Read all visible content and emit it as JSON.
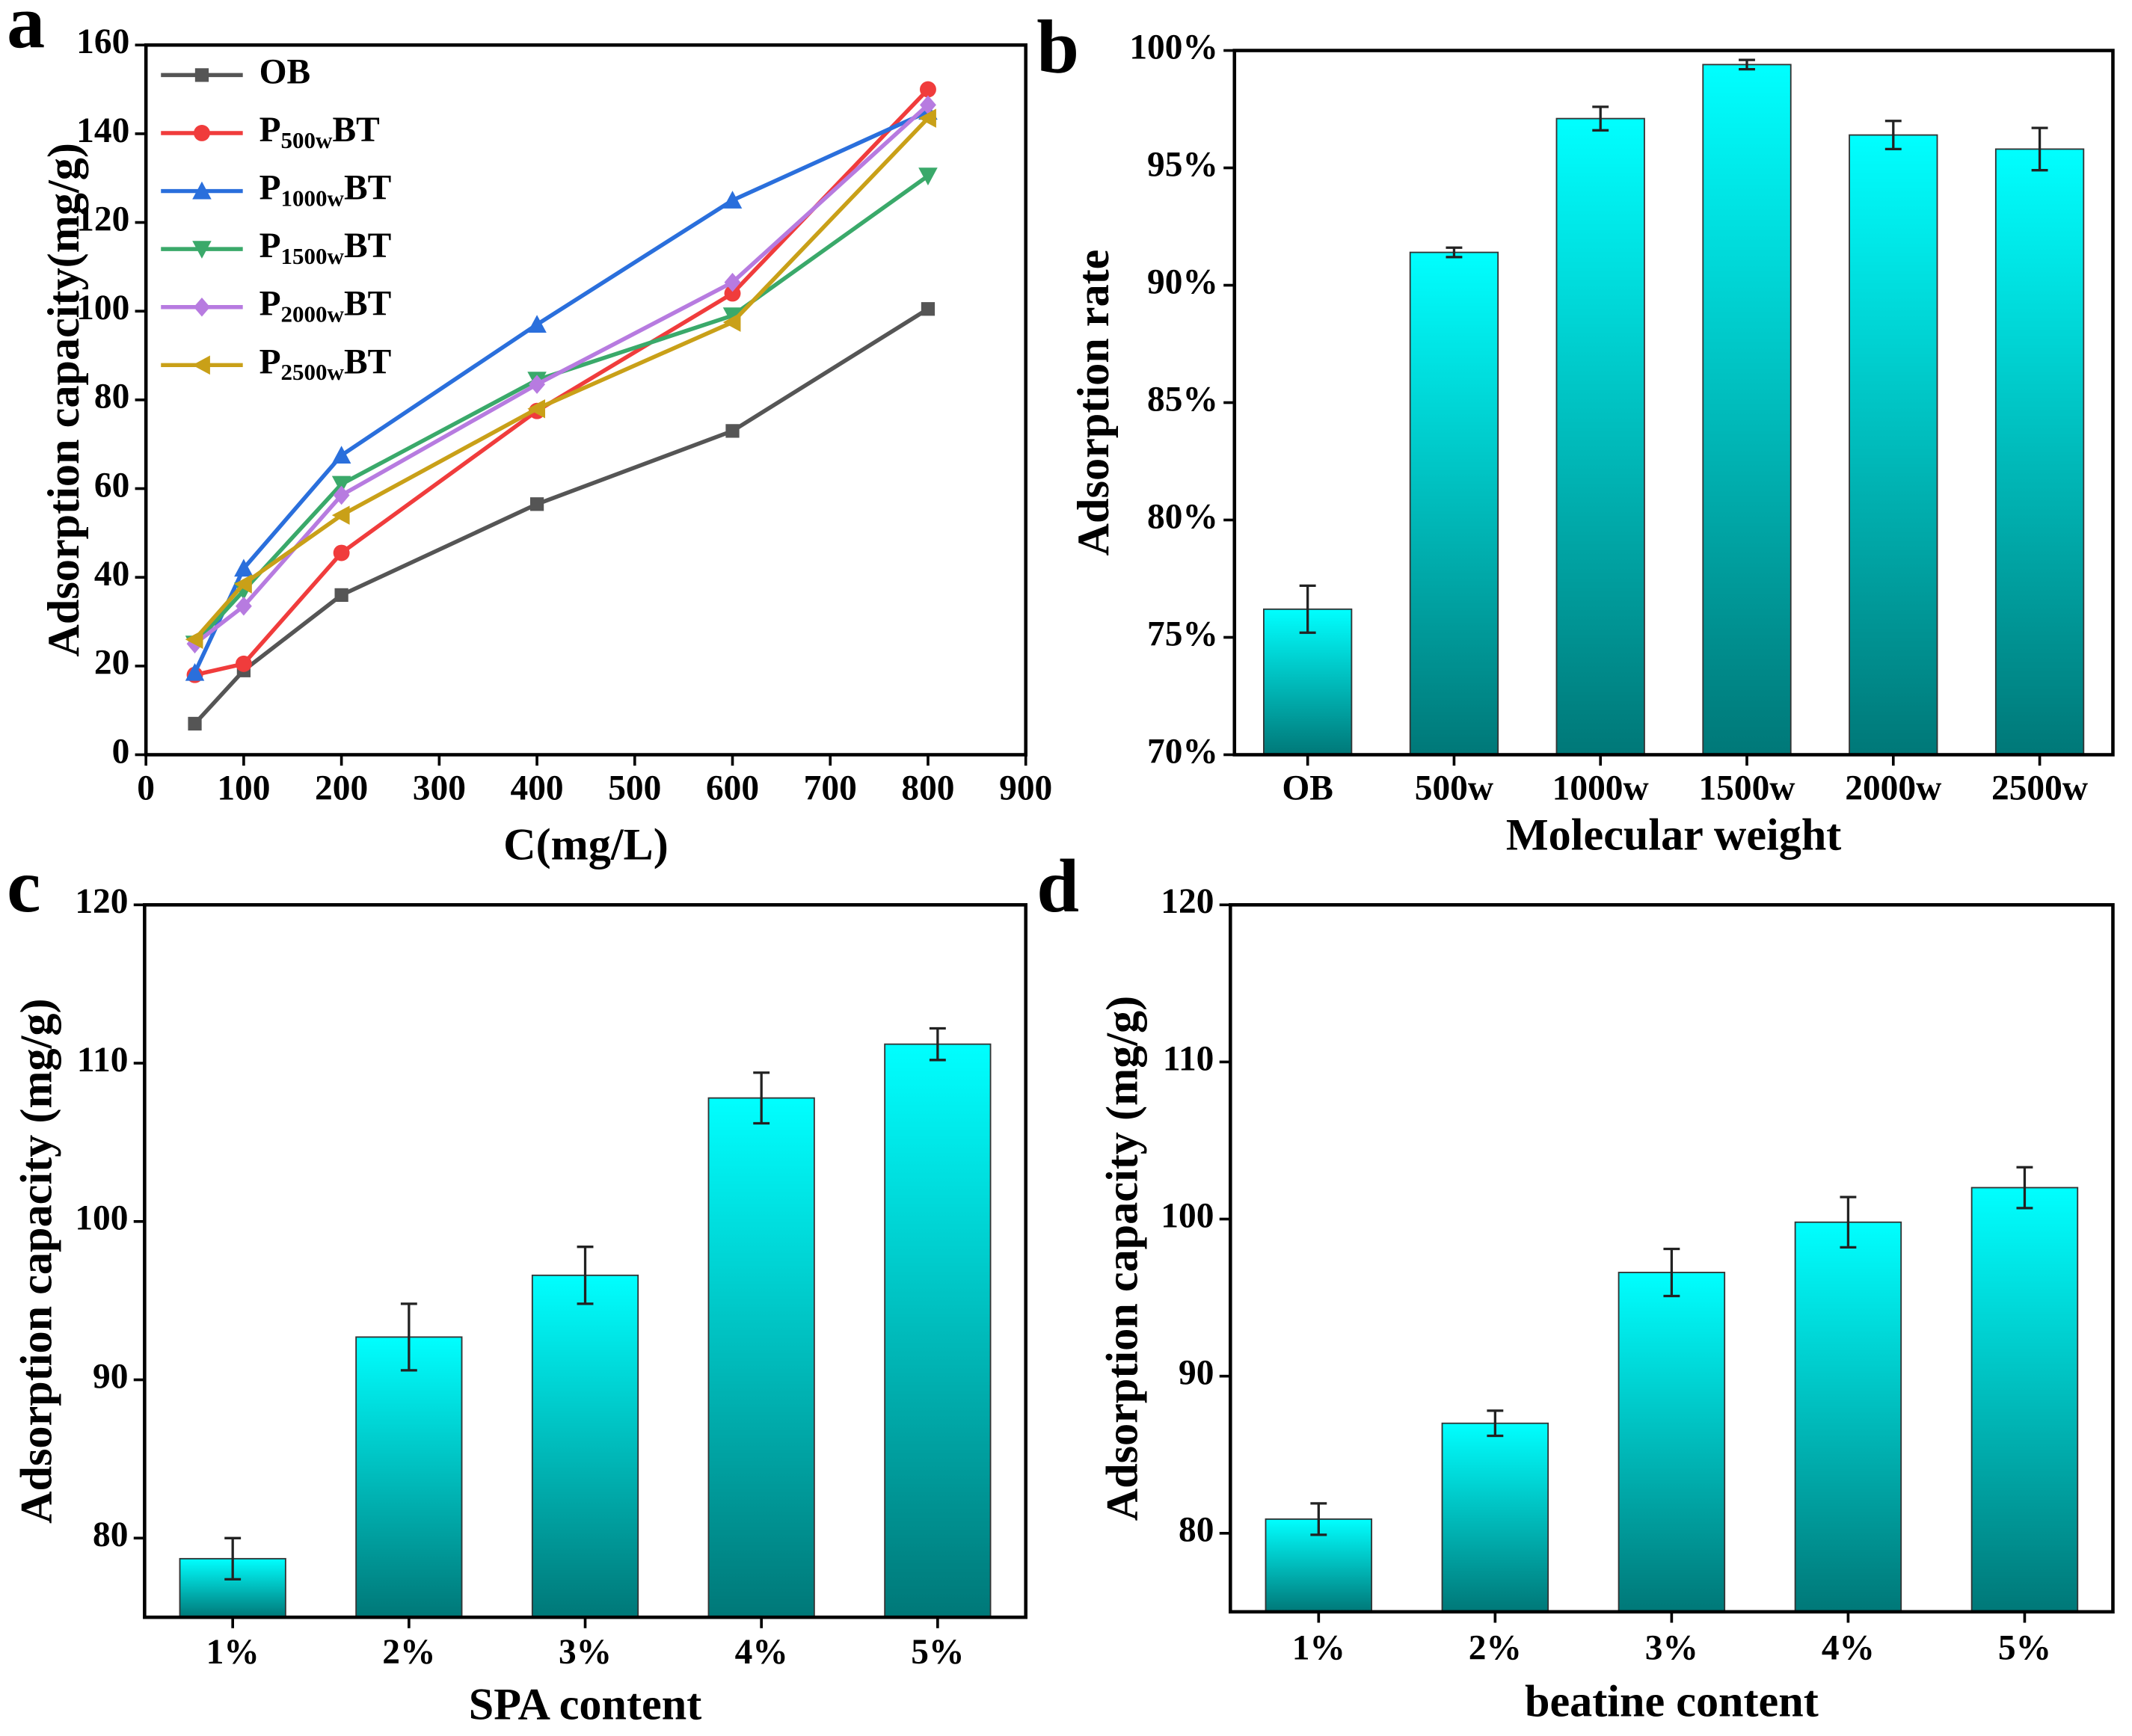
{
  "chart_data": [
    {
      "type": "line",
      "panel_label": "a",
      "x_label": "C(mg/L)",
      "y_label": "Adsorption capacity(mg/g)",
      "x": [
        50,
        100,
        200,
        400,
        600,
        800
      ],
      "series": [
        {
          "name": "OB",
          "color": "#555555",
          "marker": "square",
          "values": [
            7,
            19,
            36,
            56.5,
            73,
            100.5
          ]
        },
        {
          "name": "P500wBT",
          "color": "#f03c3c",
          "marker": "circle",
          "values": [
            18,
            20.5,
            45.5,
            77.5,
            104,
            150
          ]
        },
        {
          "name": "P1000wBT",
          "color": "#2a6fdc",
          "marker": "triangle-up",
          "values": [
            18.5,
            42,
            67.5,
            97,
            125,
            145
          ]
        },
        {
          "name": "P1500wBT",
          "color": "#3aa96a",
          "marker": "triangle-down",
          "values": [
            25,
            37,
            61,
            84.5,
            99,
            130.5
          ]
        },
        {
          "name": "P2000wBT",
          "color": "#b77be0",
          "marker": "diamond",
          "values": [
            25,
            33.5,
            58.5,
            83.5,
            106.5,
            146.5
          ]
        },
        {
          "name": "P2500wBT",
          "color": "#c9a018",
          "marker": "triangle-left",
          "values": [
            26,
            38.5,
            54,
            78,
            97.5,
            143.5
          ]
        }
      ],
      "xlim": [
        0,
        900
      ],
      "xticks": [
        0,
        100,
        200,
        300,
        400,
        500,
        600,
        700,
        800,
        900
      ],
      "ylim": [
        0,
        160
      ],
      "yticks": [
        0,
        20,
        40,
        60,
        80,
        100,
        120,
        140,
        160
      ],
      "legend": "upper-left"
    },
    {
      "type": "bar",
      "panel_label": "b",
      "x_label": "Molecular weight",
      "y_label": "Adsorption rate",
      "categories": [
        "OB",
        "500w",
        "1000w",
        "1500w",
        "2000w",
        "2500w"
      ],
      "values": [
        76.2,
        91.4,
        97.1,
        99.4,
        96.4,
        95.8
      ],
      "errors": [
        1.0,
        0.2,
        0.5,
        0.2,
        0.6,
        0.9
      ],
      "gradient": [
        "#00ffff",
        "#007878"
      ],
      "ylim": [
        70,
        100
      ],
      "yticks": [
        {
          "value": 70,
          "label": "70%"
        },
        {
          "value": 75,
          "label": "75%"
        },
        {
          "value": 80,
          "label": "80%"
        },
        {
          "value": 85,
          "label": "85%"
        },
        {
          "value": 90,
          "label": "90%"
        },
        {
          "value": 95,
          "label": "95%"
        },
        {
          "value": 100,
          "label": "100%"
        }
      ]
    },
    {
      "type": "bar",
      "panel_label": "c",
      "x_label": "SPA content",
      "y_label": "Adsorption capacity (mg/g)",
      "categories": [
        "1%",
        "2%",
        "3%",
        "4%",
        "5%"
      ],
      "values": [
        78.7,
        92.7,
        96.6,
        107.8,
        111.2
      ],
      "errors": [
        1.3,
        2.1,
        1.8,
        1.6,
        1.0
      ],
      "gradient": [
        "#00ffff",
        "#007878"
      ],
      "ylim": [
        75,
        120
      ],
      "yticks": [
        80,
        90,
        100,
        110,
        120
      ]
    },
    {
      "type": "bar",
      "panel_label": "d",
      "x_label": "beatine content",
      "y_label": "Adsorption capacity (mg/g)",
      "categories": [
        "1%",
        "2%",
        "3%",
        "4%",
        "5%"
      ],
      "values": [
        80.9,
        87.0,
        96.6,
        99.8,
        102.0
      ],
      "errors": [
        1.0,
        0.8,
        1.5,
        1.6,
        1.3
      ],
      "gradient": [
        "#00ffff",
        "#007878"
      ],
      "ylim": [
        75,
        120
      ],
      "yticks": [
        80,
        90,
        100,
        110,
        120
      ]
    }
  ]
}
